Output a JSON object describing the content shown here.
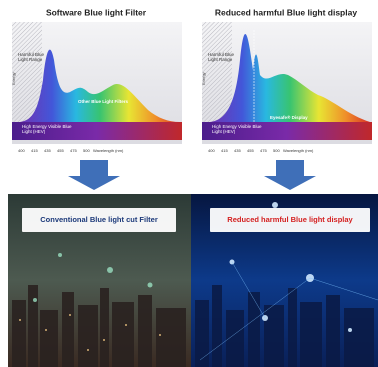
{
  "panels": [
    {
      "title": "Software Blue light Filter",
      "y_axis_label": "Energy",
      "range_label": "Harmful Blue Light Range",
      "curve_label": "Other Blue Light Filters",
      "band_label": "High Energy Visible Blue Light (HEV)",
      "x_ticks": [
        400,
        415,
        435,
        455,
        475,
        500
      ],
      "x_axis_label": "Wavelength (nm)"
    },
    {
      "title": "Reduced harmful Blue light display",
      "y_axis_label": "Energy",
      "range_label": "Harmful Blue Light Range",
      "curve_label": "Eyesafe® Display",
      "band_label": "High Energy Visible Blue Light (HEV)",
      "x_ticks": [
        400,
        415,
        435,
        455,
        475,
        500
      ],
      "x_axis_label": "Wavelength (nm)"
    }
  ],
  "photos": [
    {
      "label": "Conventional Blue light cut Filter"
    },
    {
      "label": "Reduced harmful Blue light display"
    }
  ]
}
